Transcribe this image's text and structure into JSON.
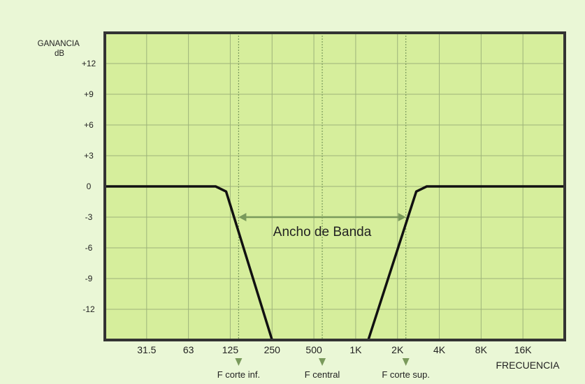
{
  "chart_data": {
    "type": "line",
    "ylabel_line1": "GANANCIA",
    "ylabel_line2": "dB",
    "xlabel": "FRECUENCIA",
    "x_ticks": [
      "31.5",
      "63",
      "125",
      "250",
      "500",
      "1K",
      "2K",
      "4K",
      "8K",
      "16K"
    ],
    "y_ticks": [
      "+12",
      "+9",
      "+6",
      "+3",
      "0",
      "-3",
      "-6",
      "-9",
      "-12"
    ],
    "y_tick_values": [
      12,
      9,
      6,
      3,
      0,
      -3,
      -6,
      -9,
      -12
    ],
    "ylim": [
      -15,
      15
    ],
    "x_octave_range": [
      0,
      11
    ],
    "grid": true,
    "series": [
      {
        "x_octaves": [
          0,
          2.65,
          2.9,
          4.0,
          6.3,
          7.45,
          7.7,
          11
        ],
        "y_db": [
          0,
          0,
          -0.5,
          -15,
          -15,
          -0.5,
          0,
          0
        ]
      }
    ],
    "annotations": {
      "bandwidth_label": "Ancho de Banda",
      "bandwidth_level_db": -3,
      "bandwidth_from_octave": 3.2,
      "bandwidth_to_octave": 7.2,
      "markers": [
        {
          "label": "F corte inf.",
          "octave": 3.2
        },
        {
          "label": "F central",
          "octave": 5.2
        },
        {
          "label": "F corte sup.",
          "octave": 7.2
        }
      ]
    },
    "colors": {
      "page_bg": "#eaf7d6",
      "plot_bg": "#d6ee9c",
      "grid": "#9db37a",
      "frame": "#333333",
      "curve": "#111111",
      "annotation": "#7a9a5c",
      "text": "#222222"
    }
  }
}
